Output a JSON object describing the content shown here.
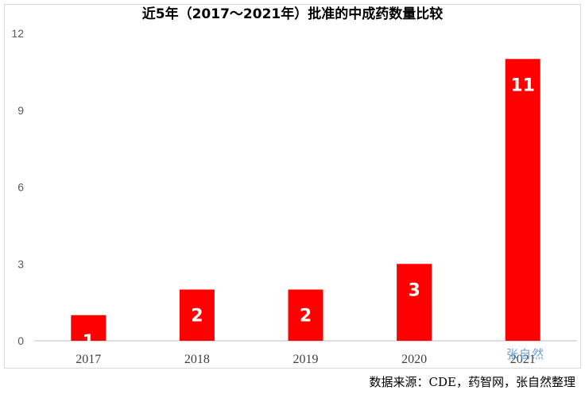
{
  "chart_data": {
    "type": "bar",
    "title": "近5年（2017～2021年）批准的中成药数量比较",
    "categories": [
      "2017",
      "2018",
      "2019",
      "2020",
      "2021"
    ],
    "values": [
      1,
      2,
      2,
      3,
      11
    ],
    "data_labels": [
      "1",
      "2",
      "2",
      "3",
      "11"
    ],
    "ylim": [
      0,
      12
    ],
    "yticks": [
      "0",
      "3",
      "6",
      "9",
      "12"
    ],
    "xlabel": "",
    "ylabel": "",
    "grid": false,
    "bar_color": "#ff0000"
  },
  "watermark": "张自然",
  "source": "数据来源：CDE，药智网，张自然整理"
}
